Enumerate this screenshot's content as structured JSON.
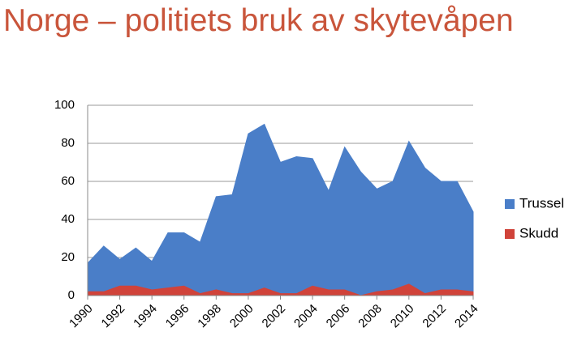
{
  "chart_data": {
    "type": "area",
    "title": "Norge – politiets bruk av skytevåpen",
    "x": [
      1990,
      1991,
      1992,
      1993,
      1994,
      1995,
      1996,
      1997,
      1998,
      1999,
      2000,
      2001,
      2002,
      2003,
      2004,
      2005,
      2006,
      2007,
      2008,
      2009,
      2010,
      2011,
      2012,
      2013,
      2014
    ],
    "series": [
      {
        "name": "Trussel",
        "color": "#4a7ec8",
        "values": [
          17,
          26,
          19,
          25,
          18,
          33,
          33,
          28,
          52,
          53,
          85,
          90,
          70,
          73,
          72,
          55,
          78,
          65,
          56,
          60,
          81,
          67,
          60,
          60,
          44
        ]
      },
      {
        "name": "Skudd",
        "color": "#d0433a",
        "values": [
          2,
          2,
          5,
          5,
          3,
          4,
          5,
          1,
          3,
          1,
          1,
          4,
          1,
          1,
          5,
          3,
          3,
          0,
          2,
          3,
          6,
          1,
          3,
          3,
          2
        ]
      }
    ],
    "xlim": [
      1990,
      2014
    ],
    "xticks": [
      1990,
      1992,
      1994,
      1996,
      1998,
      2000,
      2002,
      2004,
      2006,
      2008,
      2010,
      2012,
      2014
    ],
    "ylim": [
      0,
      100
    ],
    "yticks": [
      0,
      20,
      40,
      60,
      80,
      100
    ],
    "grid": true,
    "legend": "right"
  }
}
